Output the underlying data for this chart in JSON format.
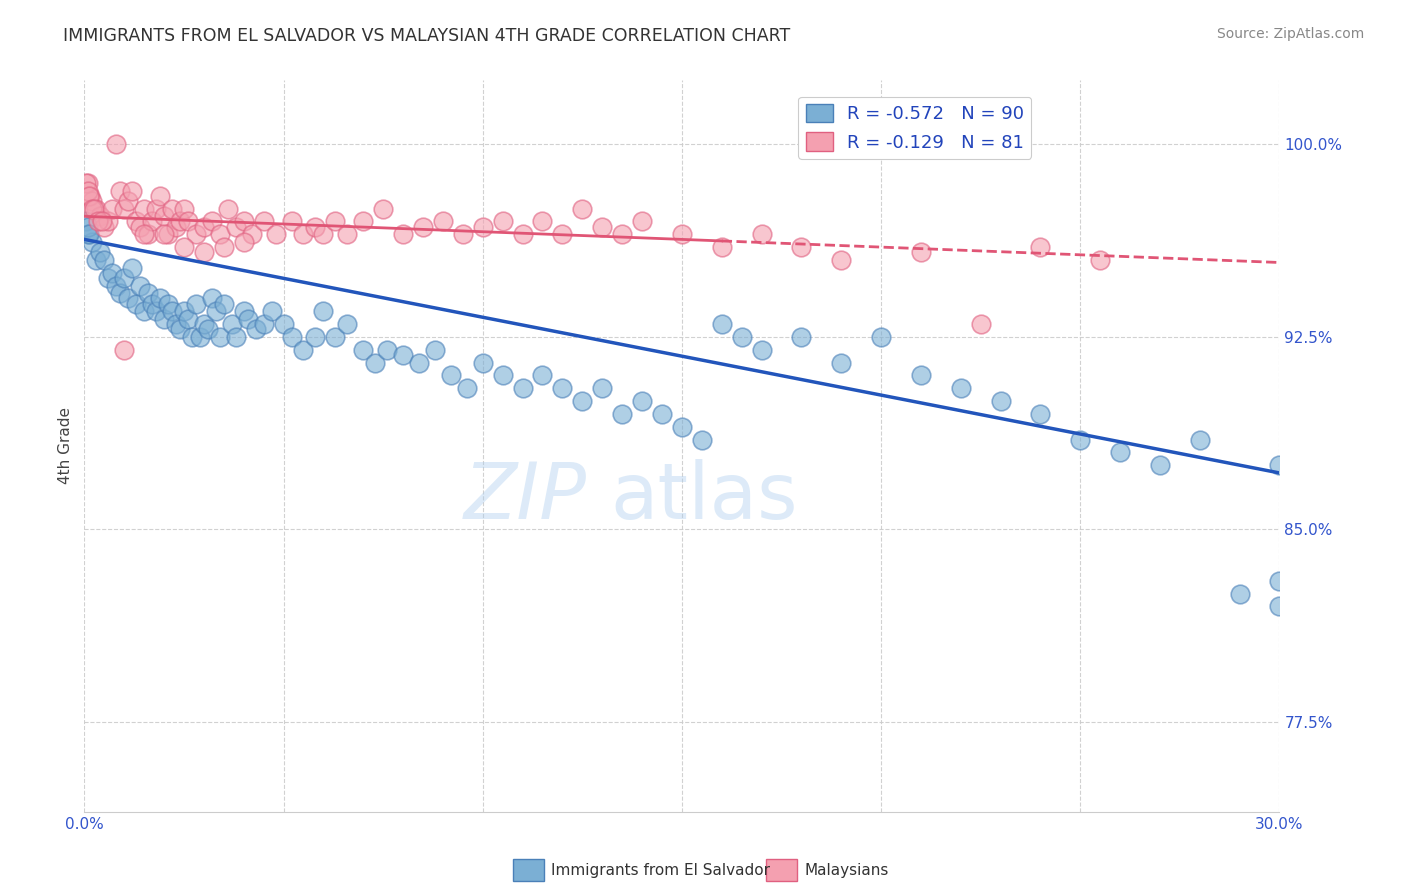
{
  "title": "IMMIGRANTS FROM EL SALVADOR VS MALAYSIAN 4TH GRADE CORRELATION CHART",
  "source": "Source: ZipAtlas.com",
  "ylabel": "4th Grade",
  "yticks": [
    100.0,
    92.5,
    85.0,
    77.5
  ],
  "ytick_labels": [
    "100.0%",
    "92.5%",
    "85.0%",
    "77.5%"
  ],
  "xmin": 0.0,
  "xmax": 30.0,
  "ymin": 74.0,
  "ymax": 102.5,
  "blue_R": -0.572,
  "blue_N": 90,
  "pink_R": -0.129,
  "pink_N": 81,
  "blue_color": "#7BAFD4",
  "pink_color": "#F4A0B0",
  "blue_edge_color": "#4A80B8",
  "pink_edge_color": "#E06080",
  "blue_line_color": "#2255BB",
  "pink_line_color": "#E05575",
  "legend_blue_label": "Immigrants from El Salvador",
  "legend_pink_label": "Malaysians",
  "blue_line_x0": 0.0,
  "blue_line_y0": 96.3,
  "blue_line_x1": 30.0,
  "blue_line_y1": 87.2,
  "pink_line_x0": 0.0,
  "pink_line_y0": 97.2,
  "pink_line_x1": 30.0,
  "pink_line_y1": 95.4,
  "pink_dash_start_x": 16.0,
  "blue_scatter_x": [
    0.1,
    0.2,
    0.3,
    0.4,
    0.5,
    0.6,
    0.7,
    0.8,
    0.9,
    1.0,
    1.1,
    1.2,
    1.3,
    1.4,
    1.5,
    1.6,
    1.7,
    1.8,
    1.9,
    2.0,
    2.1,
    2.2,
    2.3,
    2.4,
    2.5,
    2.6,
    2.7,
    2.8,
    2.9,
    3.0,
    3.1,
    3.2,
    3.3,
    3.4,
    3.5,
    3.7,
    3.8,
    4.0,
    4.1,
    4.3,
    4.5,
    4.7,
    5.0,
    5.2,
    5.5,
    5.8,
    6.0,
    6.3,
    6.6,
    7.0,
    7.3,
    7.6,
    8.0,
    8.4,
    8.8,
    9.2,
    9.6,
    10.0,
    10.5,
    11.0,
    11.5,
    12.0,
    12.5,
    13.0,
    13.5,
    14.0,
    14.5,
    15.0,
    15.5,
    16.0,
    16.5,
    17.0,
    18.0,
    19.0,
    20.0,
    21.0,
    22.0,
    23.0,
    24.0,
    25.0,
    26.0,
    27.0,
    28.0,
    29.0,
    30.0,
    30.0,
    30.0,
    0.05,
    0.08,
    0.12
  ],
  "blue_scatter_y": [
    96.5,
    96.2,
    95.5,
    95.8,
    95.5,
    94.8,
    95.0,
    94.5,
    94.2,
    94.8,
    94.0,
    95.2,
    93.8,
    94.5,
    93.5,
    94.2,
    93.8,
    93.5,
    94.0,
    93.2,
    93.8,
    93.5,
    93.0,
    92.8,
    93.5,
    93.2,
    92.5,
    93.8,
    92.5,
    93.0,
    92.8,
    94.0,
    93.5,
    92.5,
    93.8,
    93.0,
    92.5,
    93.5,
    93.2,
    92.8,
    93.0,
    93.5,
    93.0,
    92.5,
    92.0,
    92.5,
    93.5,
    92.5,
    93.0,
    92.0,
    91.5,
    92.0,
    91.8,
    91.5,
    92.0,
    91.0,
    90.5,
    91.5,
    91.0,
    90.5,
    91.0,
    90.5,
    90.0,
    90.5,
    89.5,
    90.0,
    89.5,
    89.0,
    88.5,
    93.0,
    92.5,
    92.0,
    92.5,
    91.5,
    92.5,
    91.0,
    90.5,
    90.0,
    89.5,
    88.5,
    88.0,
    87.5,
    88.5,
    82.5,
    87.5,
    83.0,
    82.0,
    97.0,
    96.8,
    96.5
  ],
  "pink_scatter_x": [
    0.1,
    0.15,
    0.2,
    0.3,
    0.4,
    0.5,
    0.6,
    0.7,
    0.8,
    0.9,
    1.0,
    1.1,
    1.2,
    1.3,
    1.4,
    1.5,
    1.6,
    1.7,
    1.8,
    1.9,
    2.0,
    2.1,
    2.2,
    2.3,
    2.4,
    2.5,
    2.6,
    2.8,
    3.0,
    3.2,
    3.4,
    3.6,
    3.8,
    4.0,
    4.2,
    4.5,
    4.8,
    5.2,
    5.5,
    5.8,
    6.0,
    6.3,
    6.6,
    7.0,
    7.5,
    8.0,
    8.5,
    9.0,
    9.5,
    10.0,
    10.5,
    11.0,
    11.5,
    12.0,
    12.5,
    13.0,
    13.5,
    14.0,
    15.0,
    16.0,
    17.0,
    18.0,
    19.0,
    21.0,
    22.5,
    24.0,
    25.5,
    0.05,
    0.08,
    0.12,
    0.18,
    0.25,
    0.35,
    0.45,
    1.5,
    2.0,
    2.5,
    3.0,
    3.5,
    4.0,
    1.0
  ],
  "pink_scatter_y": [
    98.5,
    98.0,
    97.8,
    97.5,
    97.2,
    96.8,
    97.0,
    97.5,
    100.0,
    98.2,
    97.5,
    97.8,
    98.2,
    97.0,
    96.8,
    97.5,
    96.5,
    97.0,
    97.5,
    98.0,
    97.2,
    96.5,
    97.5,
    96.8,
    97.0,
    97.5,
    97.0,
    96.5,
    96.8,
    97.0,
    96.5,
    97.5,
    96.8,
    97.0,
    96.5,
    97.0,
    96.5,
    97.0,
    96.5,
    96.8,
    96.5,
    97.0,
    96.5,
    97.0,
    97.5,
    96.5,
    96.8,
    97.0,
    96.5,
    96.8,
    97.0,
    96.5,
    97.0,
    96.5,
    97.5,
    96.8,
    96.5,
    97.0,
    96.5,
    96.0,
    96.5,
    96.0,
    95.5,
    95.8,
    93.0,
    96.0,
    95.5,
    98.5,
    98.2,
    98.0,
    97.5,
    97.5,
    97.0,
    97.0,
    96.5,
    96.5,
    96.0,
    95.8,
    96.0,
    96.2,
    92.0
  ]
}
